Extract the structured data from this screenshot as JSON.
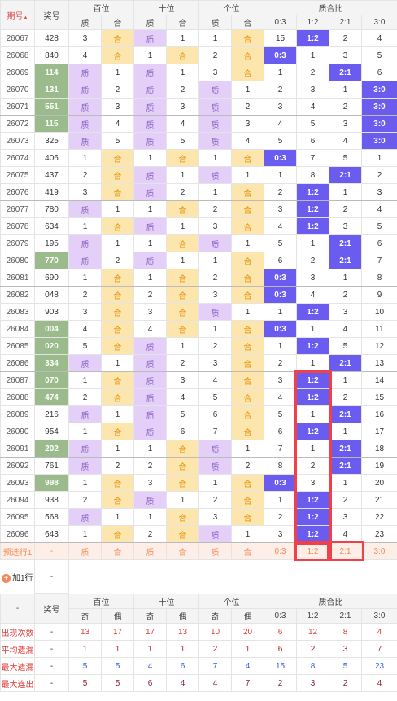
{
  "header": {
    "issue": "期号",
    "number": "奖号",
    "groups": [
      "百位",
      "十位",
      "个位",
      "质合比"
    ],
    "sub": [
      "质",
      "合",
      "质",
      "合",
      "质",
      "合",
      "0:3",
      "1:2",
      "2:1",
      "3:0"
    ]
  },
  "rows": [
    {
      "issue": "26067",
      "number": "428",
      "hl": false,
      "cells": [
        "3",
        "合",
        "质",
        "1",
        "1",
        "合",
        "15",
        "1:2",
        "2",
        "4"
      ]
    },
    {
      "issue": "26068",
      "number": "840",
      "hl": false,
      "cells": [
        "4",
        "合",
        "1",
        "合",
        "2",
        "合",
        "0:3",
        "1",
        "3",
        "5"
      ]
    },
    {
      "issue": "26069",
      "number": "114",
      "hl": true,
      "cells": [
        "质",
        "1",
        "质",
        "1",
        "3",
        "合",
        "1",
        "2",
        "2:1",
        "6"
      ]
    },
    {
      "issue": "26070",
      "number": "131",
      "hl": true,
      "cells": [
        "质",
        "2",
        "质",
        "2",
        "质",
        "1",
        "2",
        "3",
        "1",
        "3:0"
      ]
    },
    {
      "issue": "26071",
      "number": "551",
      "hl": true,
      "cells": [
        "质",
        "3",
        "质",
        "3",
        "质",
        "2",
        "3",
        "4",
        "2",
        "3:0"
      ]
    },
    {
      "issue": "26072",
      "number": "115",
      "hl": true,
      "cells": [
        "质",
        "4",
        "质",
        "4",
        "质",
        "3",
        "4",
        "5",
        "3",
        "3:0"
      ]
    },
    {
      "issue": "26073",
      "number": "325",
      "hl": false,
      "cells": [
        "质",
        "5",
        "质",
        "5",
        "质",
        "4",
        "5",
        "6",
        "4",
        "3:0"
      ]
    },
    {
      "issue": "26074",
      "number": "406",
      "hl": false,
      "cells": [
        "1",
        "合",
        "1",
        "合",
        "1",
        "合",
        "0:3",
        "7",
        "5",
        "1"
      ]
    },
    {
      "issue": "26075",
      "number": "437",
      "hl": false,
      "cells": [
        "2",
        "合",
        "质",
        "1",
        "质",
        "1",
        "1",
        "8",
        "2:1",
        "2"
      ]
    },
    {
      "issue": "26076",
      "number": "419",
      "hl": false,
      "cells": [
        "3",
        "合",
        "质",
        "2",
        "1",
        "合",
        "2",
        "1:2",
        "1",
        "3"
      ]
    },
    {
      "issue": "26077",
      "number": "780",
      "hl": false,
      "cells": [
        "质",
        "1",
        "1",
        "合",
        "2",
        "合",
        "3",
        "1:2",
        "2",
        "4"
      ]
    },
    {
      "issue": "26078",
      "number": "634",
      "hl": false,
      "cells": [
        "1",
        "合",
        "质",
        "1",
        "3",
        "合",
        "4",
        "1:2",
        "3",
        "5"
      ]
    },
    {
      "issue": "26079",
      "number": "195",
      "hl": false,
      "cells": [
        "质",
        "1",
        "1",
        "合",
        "质",
        "1",
        "5",
        "1",
        "2:1",
        "6"
      ]
    },
    {
      "issue": "26080",
      "number": "770",
      "hl": true,
      "cells": [
        "质",
        "2",
        "质",
        "1",
        "1",
        "合",
        "6",
        "2",
        "2:1",
        "7"
      ]
    },
    {
      "issue": "26081",
      "number": "690",
      "hl": false,
      "cells": [
        "1",
        "合",
        "1",
        "合",
        "2",
        "合",
        "0:3",
        "3",
        "1",
        "8"
      ]
    },
    {
      "issue": "26082",
      "number": "048",
      "hl": false,
      "cells": [
        "2",
        "合",
        "2",
        "合",
        "3",
        "合",
        "0:3",
        "4",
        "2",
        "9"
      ]
    },
    {
      "issue": "26083",
      "number": "903",
      "hl": false,
      "cells": [
        "3",
        "合",
        "3",
        "合",
        "质",
        "1",
        "1",
        "1:2",
        "3",
        "10"
      ]
    },
    {
      "issue": "26084",
      "number": "004",
      "hl": true,
      "cells": [
        "4",
        "合",
        "4",
        "合",
        "1",
        "合",
        "0:3",
        "1",
        "4",
        "11"
      ]
    },
    {
      "issue": "26085",
      "number": "020",
      "hl": true,
      "cells": [
        "5",
        "合",
        "质",
        "1",
        "2",
        "合",
        "1",
        "1:2",
        "5",
        "12"
      ]
    },
    {
      "issue": "26086",
      "number": "334",
      "hl": true,
      "cells": [
        "质",
        "1",
        "质",
        "2",
        "3",
        "合",
        "2",
        "1",
        "2:1",
        "13"
      ]
    },
    {
      "issue": "26087",
      "number": "070",
      "hl": true,
      "cells": [
        "1",
        "合",
        "质",
        "3",
        "4",
        "合",
        "3",
        "1:2",
        "1",
        "14"
      ]
    },
    {
      "issue": "26088",
      "number": "474",
      "hl": true,
      "cells": [
        "2",
        "合",
        "质",
        "4",
        "5",
        "合",
        "4",
        "1:2",
        "2",
        "15"
      ]
    },
    {
      "issue": "26089",
      "number": "216",
      "hl": false,
      "cells": [
        "质",
        "1",
        "质",
        "5",
        "6",
        "合",
        "5",
        "1",
        "2:1",
        "16"
      ]
    },
    {
      "issue": "26090",
      "number": "954",
      "hl": false,
      "cells": [
        "1",
        "合",
        "质",
        "6",
        "7",
        "合",
        "6",
        "1:2",
        "1",
        "17"
      ]
    },
    {
      "issue": "26091",
      "number": "202",
      "hl": true,
      "cells": [
        "质",
        "1",
        "1",
        "合",
        "质",
        "1",
        "7",
        "1",
        "2:1",
        "18"
      ]
    },
    {
      "issue": "26092",
      "number": "761",
      "hl": false,
      "cells": [
        "质",
        "2",
        "2",
        "合",
        "质",
        "2",
        "8",
        "2",
        "2:1",
        "19"
      ]
    },
    {
      "issue": "26093",
      "number": "998",
      "hl": true,
      "cells": [
        "1",
        "合",
        "3",
        "合",
        "1",
        "合",
        "0:3",
        "3",
        "1",
        "20"
      ]
    },
    {
      "issue": "26094",
      "number": "938",
      "hl": false,
      "cells": [
        "2",
        "合",
        "质",
        "1",
        "2",
        "合",
        "1",
        "1:2",
        "2",
        "21"
      ]
    },
    {
      "issue": "26095",
      "number": "568",
      "hl": false,
      "cells": [
        "质",
        "1",
        "1",
        "合",
        "3",
        "合",
        "2",
        "1:2",
        "3",
        "22"
      ]
    },
    {
      "issue": "26096",
      "number": "643",
      "hl": false,
      "cells": [
        "1",
        "合",
        "2",
        "合",
        "质",
        "1",
        "3",
        "1:2",
        "4",
        "23"
      ]
    }
  ],
  "preselect": {
    "label": "预选行1",
    "number": "-",
    "cells": [
      "质",
      "合",
      "质",
      "合",
      "质",
      "合",
      "0:3",
      "1:2",
      "2:1",
      "3:0"
    ]
  },
  "add_row": {
    "label": "加1行",
    "value": "-"
  },
  "footer": {
    "corner": "-",
    "number": "奖号",
    "groups": [
      "百位",
      "十位",
      "个位",
      "质合比"
    ],
    "sub": [
      "奇",
      "偶",
      "奇",
      "偶",
      "奇",
      "偶",
      "0:3",
      "1:2",
      "2:1",
      "3:0"
    ],
    "rows": [
      {
        "label": "出现次数",
        "number": "-",
        "color": "#e03c3c",
        "values": [
          13,
          17,
          17,
          13,
          10,
          20,
          6,
          12,
          8,
          4
        ]
      },
      {
        "label": "平均遗漏",
        "number": "-",
        "color": "#b8202a",
        "values": [
          1,
          1,
          1,
          1,
          2,
          1,
          6,
          2,
          3,
          7
        ]
      },
      {
        "label": "最大遗漏",
        "number": "-",
        "color": "#2e5fd8",
        "values": [
          5,
          5,
          4,
          6,
          7,
          4,
          15,
          8,
          5,
          23
        ]
      },
      {
        "label": "最大连出",
        "number": "-",
        "color": "#8a2330",
        "values": [
          5,
          5,
          6,
          4,
          4,
          7,
          2,
          3,
          2,
          4
        ]
      }
    ]
  }
}
